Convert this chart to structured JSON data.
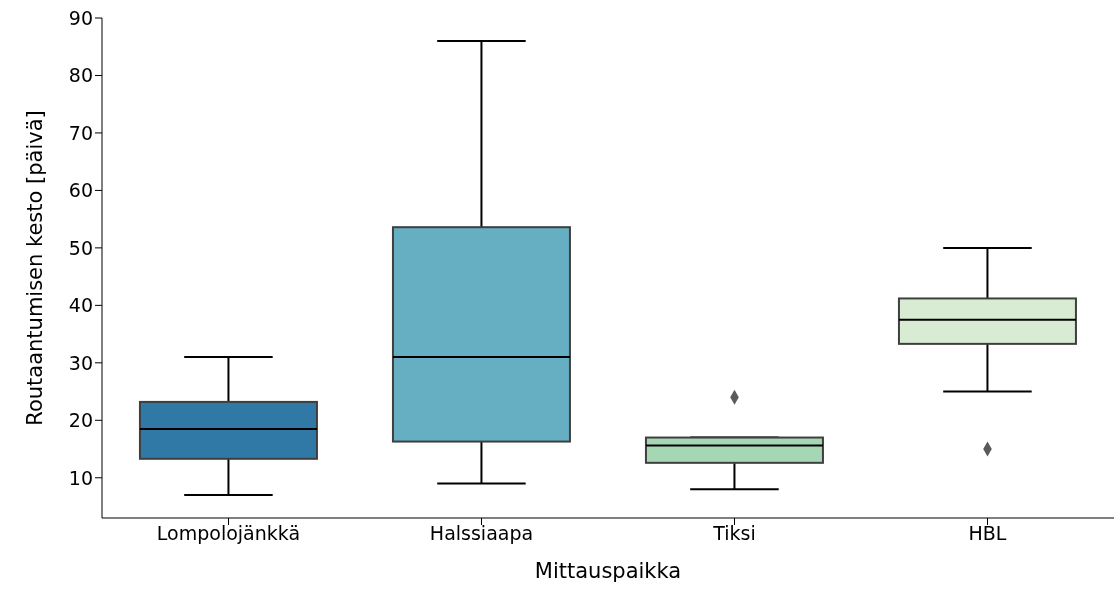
{
  "chart_data": {
    "type": "box",
    "xlabel": "Mittauspaikka",
    "ylabel": "Routaantumisen kesto [päivä]",
    "categories": [
      "Lompolojänkkä",
      "Halssiaapa",
      "Tiksi",
      "HBL"
    ],
    "colors": [
      "#3079a7",
      "#66aec2",
      "#a5d7b5",
      "#d7ecd3"
    ],
    "boxes": [
      {
        "low": 7,
        "q1": 13.3,
        "median": 18.5,
        "q3": 23.2,
        "high": 31
      },
      {
        "low": 9,
        "q1": 16.3,
        "median": 31,
        "q3": 53.6,
        "high": 86
      },
      {
        "low": 8,
        "q1": 12.6,
        "median": 15.6,
        "q3": 17,
        "high": 17,
        "outliers": [
          24
        ]
      },
      {
        "low": 25,
        "q1": 33.3,
        "median": 37.5,
        "q3": 41.2,
        "high": 50,
        "outliers": [
          15
        ]
      }
    ],
    "ylim": [
      3,
      90
    ],
    "yticks": [
      10,
      20,
      30,
      40,
      50,
      60,
      70,
      80,
      90
    ],
    "grid": false,
    "legend": false,
    "marker": "diamond"
  }
}
